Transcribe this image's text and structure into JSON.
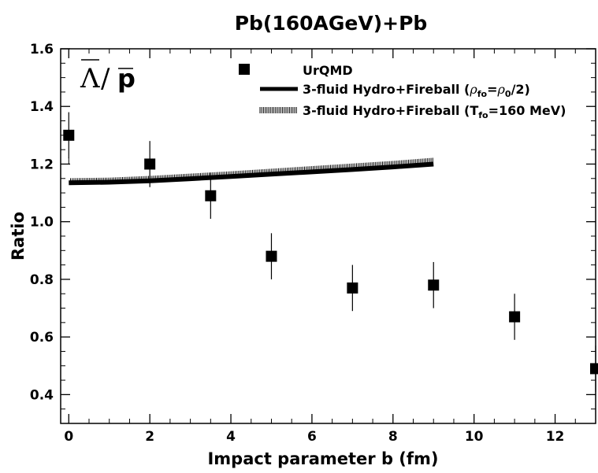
{
  "chart_data": {
    "type": "scatter",
    "title": "Pb(160AGeV)+Pb",
    "xlabel": "Impact parameter b (fm)",
    "ylabel": "Ratio",
    "plot_label": {
      "symbol": "Λ",
      "slash": "/",
      "particle": "p"
    },
    "xlim": [
      -0.2,
      13
    ],
    "ylim": [
      0.3,
      1.6
    ],
    "xticks": [
      0,
      2,
      4,
      6,
      8,
      10,
      12
    ],
    "yticks": [
      0.4,
      0.6,
      0.8,
      1.0,
      1.2,
      1.4,
      1.6
    ],
    "xtick_labels": [
      "0",
      "2",
      "4",
      "6",
      "8",
      "10",
      "12"
    ],
    "ytick_labels": [
      "0.4",
      "0.6",
      "0.8",
      "1.0",
      "1.2",
      "1.4",
      "1.6"
    ],
    "series": [
      {
        "name": "UrQMD",
        "type": "scatter",
        "marker": "square",
        "x": [
          0,
          2,
          3.5,
          5,
          7,
          9,
          11,
          13
        ],
        "y": [
          1.3,
          1.2,
          1.09,
          0.88,
          0.77,
          0.78,
          0.67,
          0.49
        ],
        "yerr": [
          0.08,
          0.08,
          0.08,
          0.08,
          0.08,
          0.08,
          0.08,
          0.08
        ]
      },
      {
        "name": "3-fluid Hydro+Fireball (ρfo=ρ0/2)",
        "type": "line",
        "style": "solid",
        "x": [
          0,
          1,
          2,
          3,
          4,
          5,
          6,
          7,
          8,
          9
        ],
        "y": [
          1.135,
          1.137,
          1.142,
          1.149,
          1.157,
          1.165,
          1.173,
          1.181,
          1.19,
          1.2
        ]
      },
      {
        "name": "3-fluid Hydro+Fireball (Tfo=160 MeV)",
        "type": "line",
        "style": "hatched",
        "x": [
          0,
          1,
          2,
          3,
          4,
          5,
          6,
          7,
          8,
          9
        ],
        "y": [
          1.14,
          1.142,
          1.148,
          1.156,
          1.164,
          1.173,
          1.182,
          1.191,
          1.2,
          1.211
        ]
      }
    ],
    "legend": {
      "position": "top-right",
      "entries": [
        {
          "main": "UrQMD"
        },
        {
          "main": "3-fluid Hydro+Fireball (",
          "greek": "ρ",
          "sub": "fo",
          "mid": "=",
          "greek2": "ρ",
          "sub2": "0",
          "tail": "/2)"
        },
        {
          "main": "3-fluid Hydro+Fireball (T",
          "sub": "fo",
          "tail": "=160 MeV)"
        }
      ]
    }
  }
}
